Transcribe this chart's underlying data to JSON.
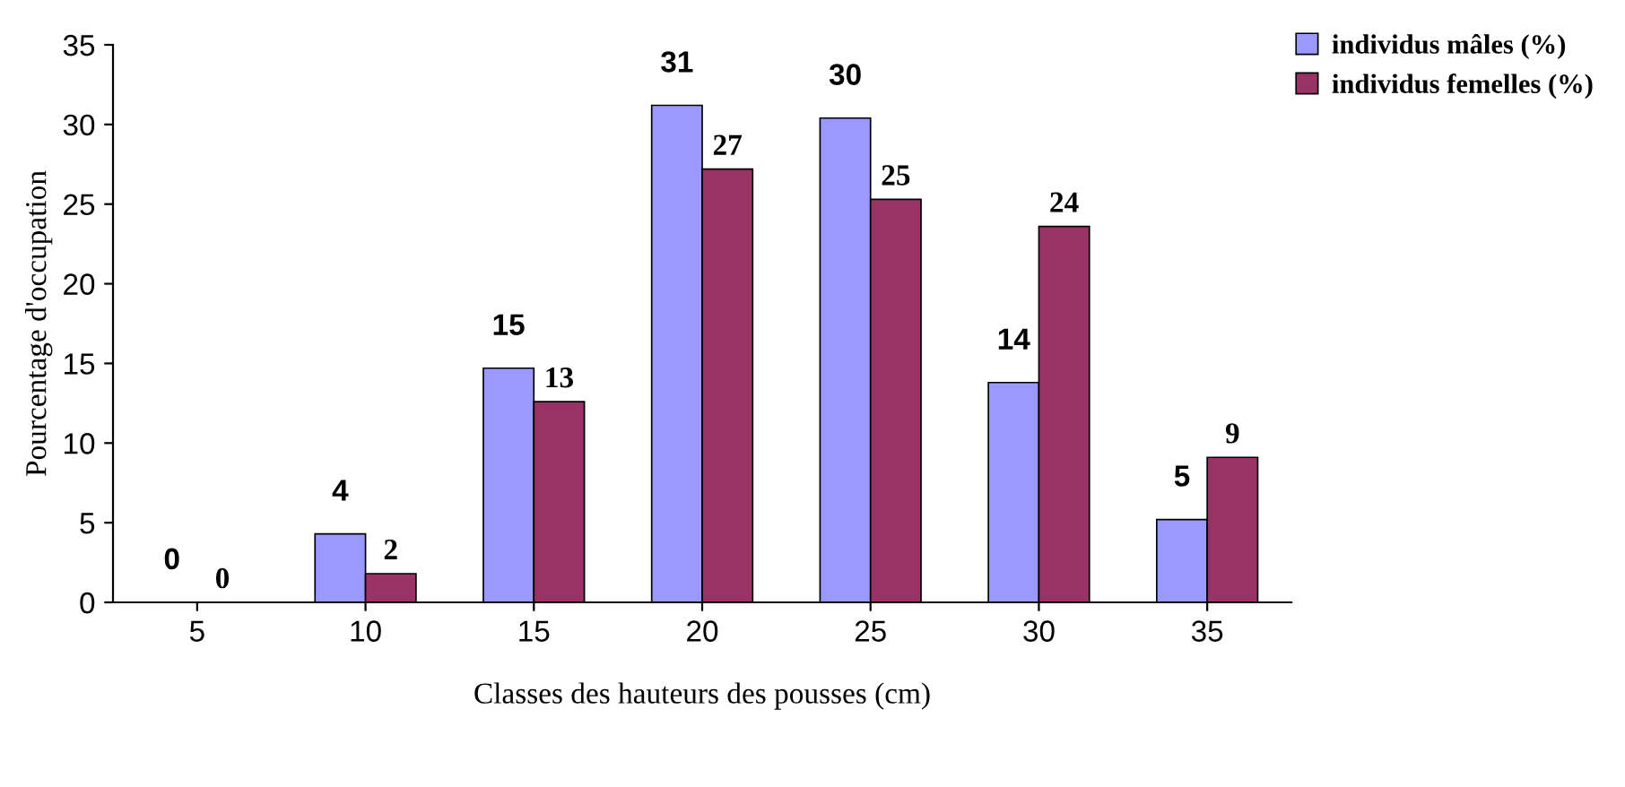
{
  "chart_data": {
    "type": "bar",
    "xlabel": "Classes des hauteurs des pousses (cm)",
    "ylabel": "Pourcentage d'occupation",
    "categories": [
      "5",
      "10",
      "15",
      "20",
      "25",
      "30",
      "35"
    ],
    "series": [
      {
        "name": "individus mâles (%)",
        "color": "#9999ff",
        "values": [
          0,
          4.3,
          14.7,
          31.2,
          30.4,
          13.8,
          5.2
        ],
        "value_labels": [
          "0",
          "4",
          "15",
          "31",
          "30",
          "14",
          "5"
        ]
      },
      {
        "name": "individus femelles (%)",
        "color": "#993366",
        "values": [
          0,
          1.8,
          12.6,
          27.2,
          25.3,
          23.6,
          9.1
        ],
        "value_labels": [
          "0",
          "2",
          "13",
          "27",
          "25",
          "24",
          "9"
        ]
      }
    ],
    "ylim": [
      0,
      35
    ],
    "yticks": [
      0,
      5,
      10,
      15,
      20,
      25,
      30,
      35
    ],
    "grid": false,
    "legend": "top right"
  }
}
